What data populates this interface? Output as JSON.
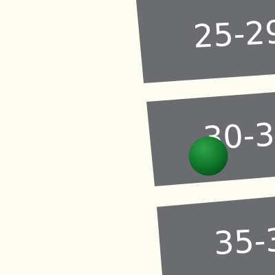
{
  "buttons": [
    {
      "label": "25-29"
    },
    {
      "label": "30-3"
    },
    {
      "label": "35-3"
    }
  ]
}
